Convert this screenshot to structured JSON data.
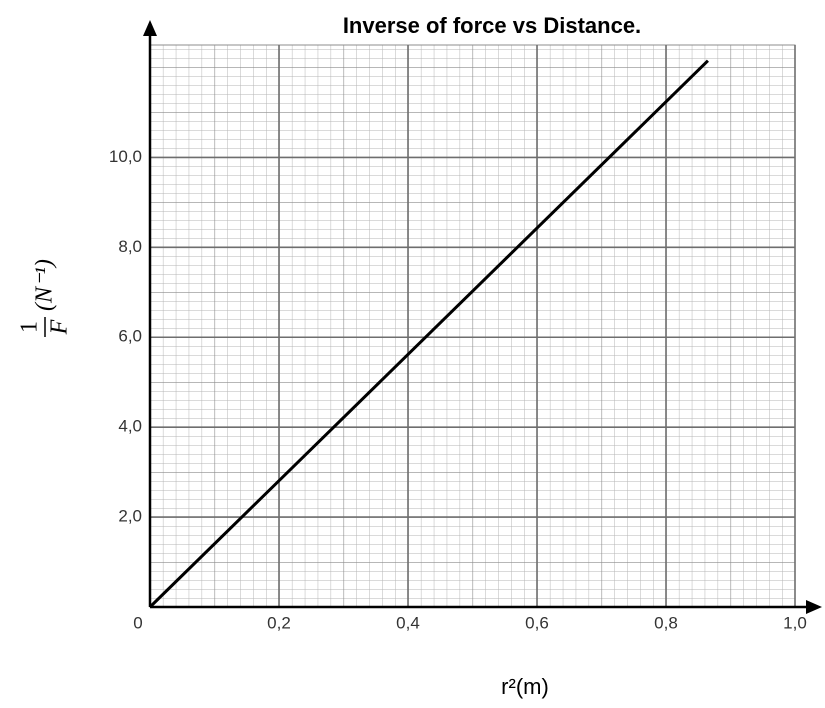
{
  "chart_data": {
    "type": "line",
    "title": "Inverse of force vs Distance.",
    "xlabel": "r²(m)",
    "ylabel": {
      "numerator": "1",
      "denominator": "F",
      "unit": "(N⁻¹)"
    },
    "x": [
      0,
      0.865
    ],
    "series": [
      {
        "color": "#000000",
        "values": [
          0,
          12.15
        ]
      }
    ],
    "xlim": [
      0,
      1.0
    ],
    "ylim": [
      0,
      12.5
    ],
    "xticks": [
      0,
      {
        "value": 0.2,
        "label": "0,2"
      },
      {
        "value": 0.4,
        "label": "0,4"
      },
      {
        "value": 0.6,
        "label": "0,6"
      },
      {
        "value": 0.8,
        "label": "0,8"
      },
      {
        "value": 1.0,
        "label": "1,0"
      }
    ],
    "yticks": [
      {
        "value": 2,
        "label": "2,0"
      },
      {
        "value": 4,
        "label": "4,0"
      },
      {
        "value": 6,
        "label": "6,0"
      },
      {
        "value": 8,
        "label": "8,0"
      },
      {
        "value": 10,
        "label": "10,0"
      }
    ],
    "grid": true
  }
}
